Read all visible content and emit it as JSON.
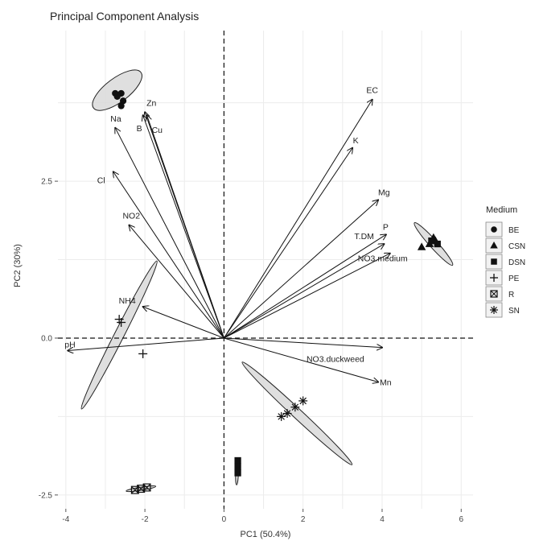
{
  "chart_data": {
    "type": "scatter",
    "title": "Principal Component Analysis",
    "xlabel": "PC1 (50.4%)",
    "ylabel": "PC2 (30%)",
    "xlim": [
      -4.2,
      6.3
    ],
    "ylim": [
      -2.72,
      4.9
    ],
    "x_ticks": [
      {
        "value": -4,
        "label": "-4"
      },
      {
        "value": -2,
        "label": "-2"
      },
      {
        "value": 0,
        "label": "0"
      },
      {
        "value": 2,
        "label": "2"
      },
      {
        "value": 4,
        "label": "4"
      },
      {
        "value": 6,
        "label": "6"
      }
    ],
    "y_ticks": [
      {
        "value": -2.5,
        "label": "-2.5"
      },
      {
        "value": 0,
        "label": "0.0"
      },
      {
        "value": 2.5,
        "label": "2.5"
      }
    ],
    "grid": true,
    "legend_position": "right",
    "legend_title": "Medium",
    "loadings": [
      {
        "label": "EC",
        "x": 3.75,
        "y": 3.8
      },
      {
        "label": "K",
        "x": 3.25,
        "y": 3.03
      },
      {
        "label": "Mg",
        "x": 3.9,
        "y": 2.2
      },
      {
        "label": "P",
        "x": 4.1,
        "y": 1.65
      },
      {
        "label": "T.DM",
        "x": 4.05,
        "y": 1.5
      },
      {
        "label": "NO3.medium",
        "x": 4.2,
        "y": 1.35
      },
      {
        "label": "NO3.duckweed",
        "x": 4.0,
        "y": -0.15
      },
      {
        "label": "Mn",
        "x": 3.9,
        "y": -0.7
      },
      {
        "label": "pH",
        "x": -3.95,
        "y": -0.2
      },
      {
        "label": "NH4",
        "x": -2.05,
        "y": 0.5
      },
      {
        "label": "NO2",
        "x": -2.4,
        "y": 1.8
      },
      {
        "label": "Cl",
        "x": -2.8,
        "y": 2.65
      },
      {
        "label": "Na",
        "x": -2.75,
        "y": 3.35
      },
      {
        "label": "B",
        "x": -2.05,
        "y": 3.55
      },
      {
        "label": "Cu",
        "x": -1.95,
        "y": 3.55
      },
      {
        "label": "Zn",
        "x": -2.0,
        "y": 3.6
      }
    ],
    "series": [
      {
        "name": "BE",
        "shape": "circle",
        "points": [
          [
            -2.75,
            3.9
          ],
          [
            -2.6,
            3.9
          ],
          [
            -2.55,
            3.78
          ],
          [
            -2.6,
            3.7
          ],
          [
            -2.7,
            3.85
          ]
        ]
      },
      {
        "name": "CSN",
        "shape": "triangle",
        "points": [
          [
            5.0,
            1.45
          ],
          [
            5.2,
            1.5
          ],
          [
            5.35,
            1.55
          ],
          [
            5.3,
            1.6
          ]
        ]
      },
      {
        "name": "DSN",
        "shape": "square",
        "points": [
          [
            0.35,
            -1.95
          ],
          [
            0.35,
            -2.05
          ],
          [
            0.35,
            -2.15
          ],
          [
            5.25,
            1.55
          ],
          [
            5.4,
            1.5
          ]
        ]
      },
      {
        "name": "PE",
        "shape": "plus",
        "points": [
          [
            -2.65,
            0.3
          ],
          [
            -2.6,
            0.25
          ],
          [
            -2.05,
            -0.25
          ]
        ]
      },
      {
        "name": "R",
        "shape": "boxtimes",
        "points": [
          [
            -2.25,
            -2.42
          ],
          [
            -2.1,
            -2.4
          ],
          [
            -1.95,
            -2.38
          ]
        ]
      },
      {
        "name": "SN",
        "shape": "asterisk",
        "points": [
          [
            1.45,
            -1.25
          ],
          [
            1.6,
            -1.2
          ],
          [
            1.8,
            -1.1
          ],
          [
            2.0,
            -1.0
          ]
        ]
      }
    ],
    "ellipses": [
      {
        "cx": -2.7,
        "cy": 3.95,
        "rx": 0.75,
        "ry": 0.3,
        "angle": -37
      },
      {
        "cx": -2.65,
        "cy": 0.05,
        "rx": 2.1,
        "ry": 0.12,
        "angle": -63
      },
      {
        "cx": 5.3,
        "cy": 1.5,
        "rx": 0.72,
        "ry": 0.1,
        "angle": 48
      },
      {
        "cx": 1.85,
        "cy": -1.2,
        "rx": 1.9,
        "ry": 0.12,
        "angle": 43
      },
      {
        "cx": 0.33,
        "cy": -2.15,
        "rx": 0.3,
        "ry": 0.035,
        "angle": -88
      },
      {
        "cx": -2.1,
        "cy": -2.4,
        "rx": 0.38,
        "ry": 0.04,
        "angle": -9
      }
    ]
  }
}
